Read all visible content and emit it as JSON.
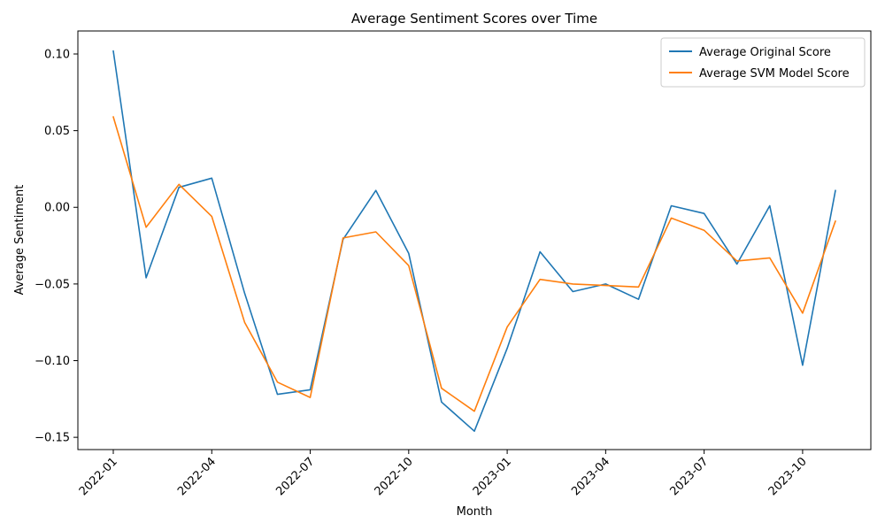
{
  "chart_data": {
    "type": "line",
    "title": "Average Sentiment Scores over Time",
    "xlabel": "Month",
    "ylabel": "Average Sentiment",
    "ylim": [
      -0.158,
      0.115
    ],
    "y_ticks": [
      -0.15,
      -0.1,
      -0.05,
      0.0,
      0.05,
      0.1
    ],
    "y_tick_labels": [
      "−0.15",
      "−0.10",
      "−0.05",
      "0.00",
      "0.05",
      "0.10"
    ],
    "x_tick_labels": [
      "2022-01",
      "2022-04",
      "2022-07",
      "2022-10",
      "2023-01",
      "2023-04",
      "2023-07",
      "2023-10"
    ],
    "x": [
      "2022-01",
      "2022-02",
      "2022-03",
      "2022-04",
      "2022-05",
      "2022-06",
      "2022-07",
      "2022-08",
      "2022-09",
      "2022-10",
      "2022-11",
      "2022-12",
      "2023-01",
      "2023-02",
      "2023-03",
      "2023-04",
      "2023-05",
      "2023-06",
      "2023-07",
      "2023-08",
      "2023-09",
      "2023-10",
      "2023-11"
    ],
    "series": [
      {
        "name": "Average Original Score",
        "color": "#1f77b4",
        "values": [
          0.102,
          -0.046,
          0.013,
          0.019,
          -0.056,
          -0.122,
          -0.119,
          -0.021,
          0.011,
          -0.03,
          -0.127,
          -0.146,
          -0.092,
          -0.029,
          -0.055,
          -0.05,
          -0.06,
          0.001,
          -0.004,
          -0.037,
          0.001,
          -0.103,
          0.011
        ]
      },
      {
        "name": "Average SVM Model Score",
        "color": "#ff7f0e",
        "values": [
          0.059,
          -0.013,
          0.015,
          -0.006,
          -0.075,
          -0.114,
          -0.124,
          -0.02,
          -0.016,
          -0.038,
          -0.118,
          -0.133,
          -0.078,
          -0.047,
          -0.05,
          -0.051,
          -0.052,
          -0.007,
          -0.015,
          -0.035,
          -0.033,
          -0.069,
          -0.009
        ]
      }
    ],
    "legend_position": "top-right",
    "grid": false
  }
}
